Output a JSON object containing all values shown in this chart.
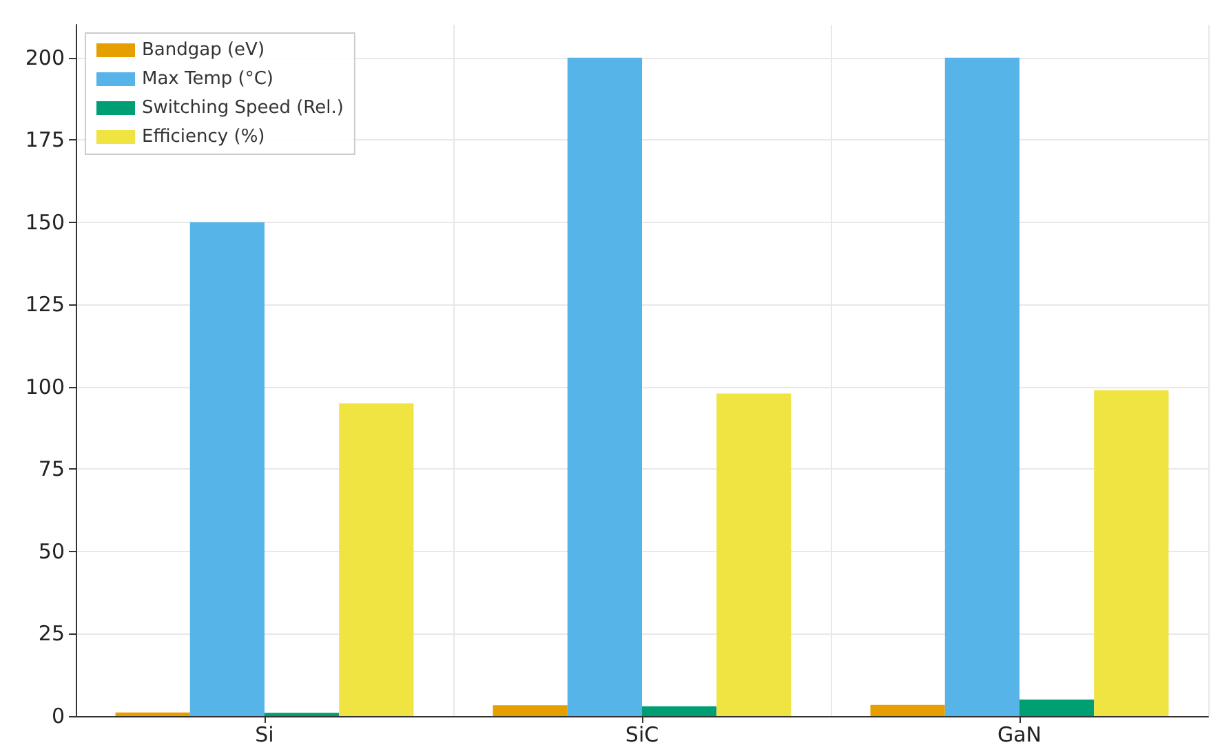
{
  "chart_data": {
    "type": "bar",
    "categories": [
      "Si",
      "SiC",
      "GaN"
    ],
    "series": [
      {
        "name": "Bandgap (eV)",
        "color": "#e69f00",
        "values": [
          1.1,
          3.3,
          3.4
        ]
      },
      {
        "name": "Max Temp (°C)",
        "color": "#56b4e9",
        "values": [
          150,
          200,
          200
        ]
      },
      {
        "name": "Switching Speed (Rel.)",
        "color": "#009e73",
        "values": [
          1,
          3,
          5
        ]
      },
      {
        "name": "Efficiency (%)",
        "color": "#f0e442",
        "values": [
          95,
          98,
          99
        ]
      }
    ],
    "ylim": [
      0,
      210
    ],
    "yticks": [
      0,
      25,
      50,
      75,
      100,
      125,
      150,
      175,
      200
    ],
    "grid": true,
    "legend": "top left"
  }
}
